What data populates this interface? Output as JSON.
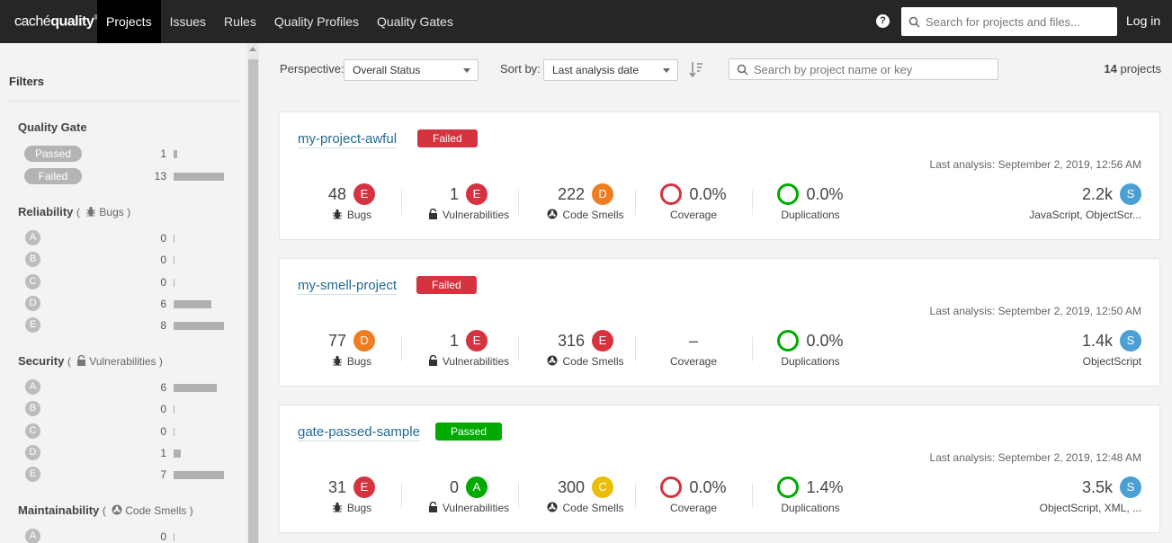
{
  "nav": {
    "logo_plain": "caché",
    "logo_bold": "quality",
    "logo_mark": "®",
    "items": [
      {
        "label": "Projects",
        "active": true
      },
      {
        "label": "Issues"
      },
      {
        "label": "Rules"
      },
      {
        "label": "Quality Profiles"
      },
      {
        "label": "Quality Gates"
      }
    ],
    "help_icon": "?",
    "search_placeholder": "Search for projects and files...",
    "login": "Log in"
  },
  "sidebar": {
    "title": "Filters",
    "quality_gate": {
      "title": "Quality Gate",
      "items": [
        {
          "label": "Passed",
          "count": "1",
          "fraction": 0.077
        },
        {
          "label": "Failed",
          "count": "13",
          "fraction": 1.0
        }
      ]
    },
    "reliability": {
      "title": "Reliability",
      "open": "(",
      "sub": "Bugs",
      "close": ")",
      "items": [
        {
          "label": "A",
          "count": "0",
          "fraction": 0
        },
        {
          "label": "B",
          "count": "0",
          "fraction": 0
        },
        {
          "label": "C",
          "count": "0",
          "fraction": 0
        },
        {
          "label": "D",
          "count": "6",
          "fraction": 0.75
        },
        {
          "label": "E",
          "count": "8",
          "fraction": 1.0
        }
      ]
    },
    "security": {
      "title": "Security",
      "open": "(",
      "sub": "Vulnerabilities",
      "close": ")",
      "items": [
        {
          "label": "A",
          "count": "6",
          "fraction": 0.857
        },
        {
          "label": "B",
          "count": "0",
          "fraction": 0
        },
        {
          "label": "C",
          "count": "0",
          "fraction": 0
        },
        {
          "label": "D",
          "count": "1",
          "fraction": 0.143
        },
        {
          "label": "E",
          "count": "7",
          "fraction": 1.0
        }
      ]
    },
    "maintainability": {
      "title": "Maintainability",
      "open": "(",
      "sub": "Code Smells",
      "close": ")",
      "items": [
        {
          "label": "A",
          "count": "0",
          "fraction": 0
        }
      ]
    }
  },
  "toolbar": {
    "perspective_label": "Perspective:",
    "perspective_value": "Overall Status",
    "sort_label": "Sort by:",
    "sort_value": "Last analysis date",
    "search_placeholder": "Search by project name or key",
    "total_count": "14",
    "total_suffix": " projects"
  },
  "projects": [
    {
      "name": "my-project-awful",
      "status": "Failed",
      "last_analysis": "Last analysis: September 2, 2019, 12:56 AM",
      "bugs": "48",
      "bugs_rating": "E",
      "vulns": "1",
      "vulns_rating": "E",
      "smells": "222",
      "smells_rating": "D",
      "coverage": "0.0%",
      "duplications": "0.0%",
      "size": "2.2k",
      "size_rating": "S",
      "languages": "JavaScript, ObjectScr..."
    },
    {
      "name": "my-smell-project",
      "status": "Failed",
      "last_analysis": "Last analysis: September 2, 2019, 12:50 AM",
      "bugs": "77",
      "bugs_rating": "D",
      "vulns": "1",
      "vulns_rating": "E",
      "smells": "316",
      "smells_rating": "E",
      "coverage": "–",
      "duplications": "0.0%",
      "size": "1.4k",
      "size_rating": "S",
      "languages": "ObjectScript"
    },
    {
      "name": "gate-passed-sample",
      "status": "Passed",
      "last_analysis": "Last analysis: September 2, 2019, 12:48 AM",
      "bugs": "31",
      "bugs_rating": "E",
      "vulns": "0",
      "vulns_rating": "A",
      "smells": "300",
      "smells_rating": "C",
      "coverage": "0.0%",
      "duplications": "1.4%",
      "size": "3.5k",
      "size_rating": "S",
      "languages": "ObjectScript, XML, ..."
    }
  ],
  "labels": {
    "bugs": "Bugs",
    "vulns": "Vulnerabilities",
    "smells": "Code Smells",
    "coverage": "Coverage",
    "duplications": "Duplications"
  }
}
